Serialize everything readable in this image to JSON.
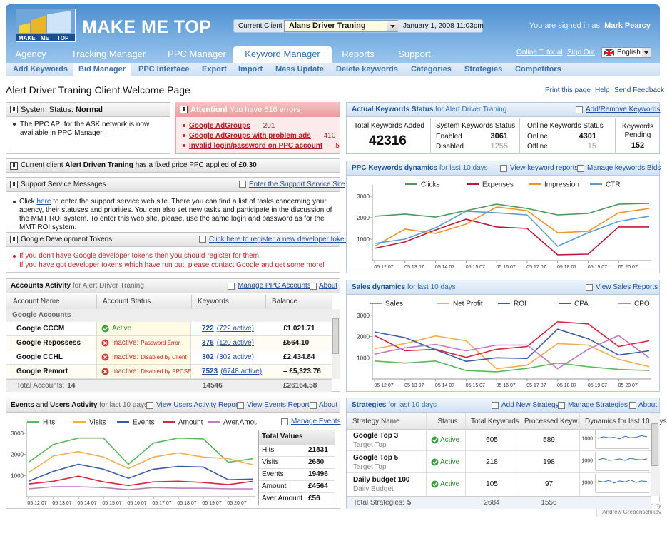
{
  "header": {
    "logo_words": [
      "MAKE",
      "ME",
      "TOP"
    ],
    "brand": "MAKE ME TOP",
    "client_label": "Current Client",
    "client": "Alans Driver Traning",
    "datetime": "January 1, 2008  11:03pm",
    "signed_in_label": "You are signed in as:",
    "user": "Mark Pearcy"
  },
  "nav": {
    "tabs": [
      "Agency",
      "Tracking Manager",
      "PPC Manager",
      "Keyword Manager",
      "Reports",
      "Support"
    ],
    "links": [
      "Online Tutorial",
      "Sign Out"
    ],
    "language": "English"
  },
  "subnav": [
    "Add Keywords",
    "Bid Manager",
    "PPC Interface",
    "Export",
    "Import",
    "Mass Update",
    "Delete keywords",
    "Categories",
    "Strategies",
    "Competitors"
  ],
  "page": {
    "title": "Alert Driver Traning Client Welcome Page",
    "links": [
      "Print this page",
      "Help",
      "Send Feedback"
    ]
  },
  "system_status": {
    "label": "System Status:",
    "status": "Normal",
    "message": "The PPC API for the ASK network is now available in PPC Manager."
  },
  "attention": {
    "label": "Attention!",
    "text": "You have 616 errors",
    "separator": "—",
    "items": [
      {
        "name": "Google AdGroups",
        "count": 201
      },
      {
        "name": "Google AdGroups with problem ads",
        "count": 410
      },
      {
        "name": "Invalid login/password on PPC account",
        "count": 5
      }
    ]
  },
  "client_note": {
    "prefix": "Current client",
    "client": "Alert Driven Traning",
    "text": "has a fixed price PPC applied of",
    "price": "£0.30"
  },
  "support": {
    "title": "Support Service Messages",
    "link": "Enter the Support Service Site",
    "body_start": "Click",
    "body_link": "here",
    "body_rest": "to enter the support service web site. There you can find a list of tasks concerning your agency, their statuses and priorities. You can also set new tasks and participate in the discussion of the MMT ROI system. To enter this web site, please, use the same login and password as for the MMT ROI system."
  },
  "tokens": {
    "title": "Google Development Tokens",
    "link": "Click here to register a new developer token",
    "lines": [
      "If you don't have Google developer tokens then you should register for them.",
      "If you have got developer tokens which have run out, please contact Google and get some more!"
    ]
  },
  "accounts": {
    "title": "Accounts Activity",
    "subtitle": "for Alert Driver Traning",
    "links": [
      "Manage PPC Accounts",
      "About"
    ],
    "columns": [
      "Account Name",
      "Account Status",
      "Keywords",
      "Balance"
    ],
    "group": "Google Accounts",
    "rows": [
      {
        "name": "Google CCCM",
        "status": "Active",
        "keywords": 722,
        "active": "(722 active)",
        "balance": "£1,021.71"
      },
      {
        "name": "Google Repossess",
        "status": "Inactive:",
        "reason": "Password Error",
        "keywords": 376,
        "active": "(120 active)",
        "balance": "£564.10"
      },
      {
        "name": "Google CCHL",
        "status": "Inactive:",
        "reason": "Disabled by Client",
        "keywords": 302,
        "active": "(302 active)",
        "balance": "£2,434.84"
      },
      {
        "name": "Google Remort",
        "status": "Inactive:",
        "reason": "Disabled by PPCSE",
        "keywords": 7523,
        "active": "(6748 active)",
        "balance": "– £5,323.76"
      }
    ],
    "footer": {
      "label": "Total Accounts:",
      "count": 14,
      "keywords": 14546,
      "balance": "£26164.58"
    }
  },
  "events": {
    "title_a": "Events",
    "title_and": "and",
    "title_b": "Users Activity",
    "subtitle": "for last 10 days",
    "links": [
      "View Users Activity Report",
      "View Events Report",
      "About"
    ],
    "manage_link": "Manage Events",
    "chart": {
      "type": "line",
      "categories": [
        "05 12 07",
        "05 13 07",
        "05 14 07",
        "05 15 07",
        "05 16 07",
        "05 17 07",
        "05 18 07",
        "05 19 07",
        "05 20 07",
        null
      ],
      "series": [
        {
          "name": "Hits",
          "color": "#5cb85c",
          "values": [
            1630,
            2470,
            2770,
            2770,
            1530,
            2530,
            2770,
            2730,
            1630,
            1800
          ]
        },
        {
          "name": "Visits",
          "color": "#f0ad4e",
          "values": [
            1130,
            1930,
            2130,
            1870,
            1330,
            1870,
            2070,
            1870,
            1800,
            1500
          ]
        },
        {
          "name": "Events",
          "color": "#3b5ba5",
          "values": [
            730,
            1200,
            1530,
            1300,
            870,
            1300,
            1430,
            1400,
            800,
            830
          ]
        },
        {
          "name": "Amount",
          "color": "#d9263f",
          "values": [
            600,
            730,
            970,
            700,
            530,
            700,
            730,
            670,
            570,
            730
          ]
        },
        {
          "name": "Aver.Amount",
          "color": "#c07ac0",
          "values": [
            370,
            470,
            470,
            430,
            330,
            430,
            400,
            400,
            370,
            370
          ]
        }
      ],
      "ylim": [
        0,
        3400
      ],
      "yticks": [
        1000,
        2000,
        3000
      ],
      "grid": false
    },
    "totals": {
      "title": "Total Values",
      "rows": [
        {
          "name": "Hits",
          "value": 21831
        },
        {
          "name": "Visits",
          "value": 2680
        },
        {
          "name": "Events",
          "value": 19496
        },
        {
          "name": "Amount",
          "value": "£4564"
        },
        {
          "name": "Aver.Amount",
          "value": "£56"
        }
      ]
    }
  },
  "keywords_status": {
    "title": "Actual Keywords Status",
    "subtitle": "for Alert Driver Traning",
    "link": "Add/Remove Keywords",
    "total_label": "Total Keywords Added",
    "total": 42316,
    "system_label": "System Keywords Status",
    "enabled_label": "Enabled",
    "enabled": 3061,
    "disabled_label": "Disabled",
    "disabled": 1255,
    "online_label": "Online Keywords Status",
    "online_text": "Online",
    "online": 4301,
    "offline_label": "Offline",
    "offline": 15,
    "pending_label": "Keywords Pending",
    "pending": 152
  },
  "ppc": {
    "title": "PPC Keywords dynamics",
    "subtitle": "for last 10 days",
    "links": [
      "View keyword reports",
      "Manage keywords Bids"
    ],
    "chart": {
      "type": "line",
      "categories": [
        "05 12 07",
        "05 13 07",
        "05 14 07",
        "05 15 07",
        "05 16 07",
        "05 17 07",
        "05 18 07",
        "05 19 07",
        "05 20 07",
        null
      ],
      "series": [
        {
          "name": "Clicks",
          "color": "#4a9a5c",
          "values": [
            2070,
            2170,
            2030,
            2330,
            2630,
            2430,
            2130,
            2200,
            2630,
            2670
          ]
        },
        {
          "name": "Expenses",
          "color": "#c0183a",
          "values": [
            570,
            870,
            1430,
            1930,
            1570,
            1500,
            270,
            300,
            1570,
            1570
          ]
        },
        {
          "name": "Impression",
          "color": "#f0932b",
          "values": [
            670,
            1470,
            1270,
            1700,
            2500,
            2330,
            1300,
            1370,
            2230,
            2430
          ]
        },
        {
          "name": "CTR",
          "color": "#5b9bd5",
          "values": [
            800,
            1000,
            1530,
            2300,
            2230,
            2130,
            670,
            1300,
            1830,
            2070
          ]
        }
      ],
      "ylim": [
        0,
        3400
      ],
      "yticks": [
        1000,
        2000,
        3000
      ],
      "grid": false
    }
  },
  "sales": {
    "title": "Sales dynamics",
    "subtitle": "for last 10 days",
    "links": [
      "View Sales Reports"
    ],
    "chart": {
      "type": "line",
      "categories": [
        "05 12 07",
        "05 13 07",
        "05 14 07",
        "05 15 07",
        "05 16 07",
        "05 17 07",
        "05 18 07",
        "05 19 07",
        "05 20 07",
        null
      ],
      "series": [
        {
          "name": "Sales",
          "color": "#5cb85c",
          "values": [
            850,
            750,
            850,
            400,
            340,
            500,
            750,
            580,
            450,
            400
          ]
        },
        {
          "name": "Net Profit",
          "color": "#f0ad4e",
          "values": [
            1430,
            1670,
            2030,
            1800,
            480,
            650,
            1670,
            1600,
            930,
            580
          ]
        },
        {
          "name": "ROI",
          "color": "#3b5ba5",
          "values": [
            2220,
            1950,
            1380,
            830,
            1000,
            970,
            2350,
            1900,
            1130,
            1330
          ]
        },
        {
          "name": "CPA",
          "color": "#d9263f",
          "values": [
            2050,
            1330,
            1400,
            1020,
            1400,
            1530,
            2700,
            2600,
            1530,
            1800
          ]
        },
        {
          "name": "CPO",
          "color": "#c07ac0",
          "values": [
            1170,
            1470,
            1630,
            1330,
            1600,
            1600,
            480,
            1400,
            2050,
            1000
          ]
        }
      ],
      "ylim": [
        0,
        3400
      ],
      "yticks": [
        1000,
        2000,
        3000
      ],
      "grid": false
    }
  },
  "strategies": {
    "title": "Strategies",
    "subtitle": "for last 10 days",
    "links": [
      "Add New Strategy",
      "Manage Strategies",
      "About"
    ],
    "columns": [
      "Strategy Name",
      "Status",
      "Total Keywords",
      "Processed Keyw.",
      "Dynamics for last 10 days"
    ],
    "rows": [
      {
        "name": "Google Top 3",
        "type": "Target Top",
        "status": "Active",
        "total": 605,
        "processed": 589,
        "dynamics": {
          "type": "line",
          "color": "#3b6fb0",
          "values": [
            950,
            1100,
            1000,
            1050,
            900,
            1150,
            1000,
            1050,
            1200,
            1100
          ],
          "ylim": [
            0,
            1500
          ],
          "yticks": [
            1000
          ]
        }
      },
      {
        "name": "Google Top 5",
        "type": "Target Top",
        "status": "Active",
        "total": 218,
        "processed": 198,
        "dynamics": {
          "type": "line",
          "color": "#3b6fb0",
          "values": [
            1000,
            1150,
            950,
            1000,
            1100,
            950,
            1150,
            1050,
            1000,
            1100
          ],
          "ylim": [
            0,
            1500
          ],
          "yticks": [
            1000
          ]
        }
      },
      {
        "name": "Daily budget 100",
        "type": "Daily Budget",
        "status": "Active",
        "total": 105,
        "processed": 97,
        "dynamics": {
          "type": "line",
          "color": "#3b6fb0",
          "values": [
            1100,
            1000,
            1150,
            900,
            1100,
            1000,
            1200,
            950,
            1100,
            1050
          ],
          "ylim": [
            0,
            1500
          ],
          "yticks": [
            1000
          ]
        }
      }
    ],
    "footer": {
      "label": "Total Strategies:",
      "count": 5,
      "total": 2684,
      "processed": 1556
    }
  },
  "footer": {
    "designed_by": "Designed by",
    "designer": "Andrew Grebenschikov"
  }
}
